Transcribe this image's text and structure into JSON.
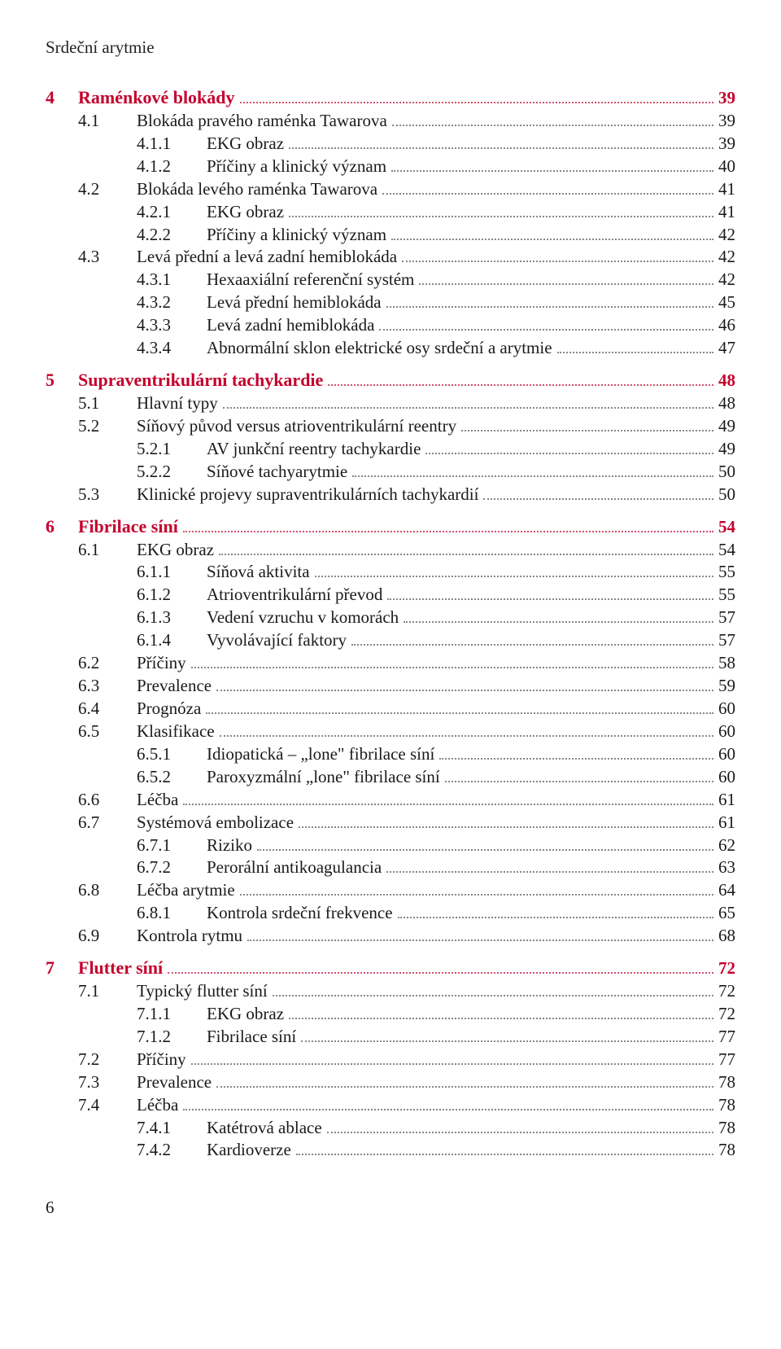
{
  "colors": {
    "accent": "#c4002d",
    "text": "#1a1a1a",
    "dot": "#888888",
    "dot_accent": "#d0526e",
    "background": "#ffffff"
  },
  "typography": {
    "body_family": "Minion Pro / Times New Roman serif",
    "body_size_pt": 16,
    "line_height": 1.33
  },
  "running_head": "Srdeční arytmie",
  "page_number": "6",
  "chapters": [
    {
      "num": "4",
      "title": "Raménkové blokády",
      "page": "39",
      "sections": [
        {
          "num": "4.1",
          "title": "Blokáda pravého raménka Tawarova",
          "page": "39",
          "subs": [
            {
              "num": "4.1.1",
              "title": "EKG obraz",
              "page": "39"
            },
            {
              "num": "4.1.2",
              "title": "Příčiny a klinický význam",
              "page": "40"
            }
          ]
        },
        {
          "num": "4.2",
          "title": "Blokáda levého raménka Tawarova",
          "page": "41",
          "subs": [
            {
              "num": "4.2.1",
              "title": "EKG obraz",
              "page": "41"
            },
            {
              "num": "4.2.2",
              "title": "Příčiny a klinický význam",
              "page": "42"
            }
          ]
        },
        {
          "num": "4.3",
          "title": "Levá přední a levá zadní hemiblokáda",
          "page": "42",
          "subs": [
            {
              "num": "4.3.1",
              "title": "Hexaaxiální referenční systém",
              "page": "42"
            },
            {
              "num": "4.3.2",
              "title": "Levá přední hemiblokáda",
              "page": "45"
            },
            {
              "num": "4.3.3",
              "title": "Levá zadní hemiblokáda",
              "page": "46"
            },
            {
              "num": "4.3.4",
              "title": "Abnormální sklon elektrické osy srdeční a arytmie",
              "page": "47"
            }
          ]
        }
      ]
    },
    {
      "num": "5",
      "title": "Supraventrikulární tachykardie",
      "page": "48",
      "sections": [
        {
          "num": "5.1",
          "title": "Hlavní typy",
          "page": "48",
          "subs": []
        },
        {
          "num": "5.2",
          "title": "Síňový původ versus atrioventrikulární reentry",
          "page": "49",
          "subs": [
            {
              "num": "5.2.1",
              "title": "AV junkční reentry tachykardie",
              "page": "49"
            },
            {
              "num": "5.2.2",
              "title": "Síňové tachyarytmie",
              "page": "50"
            }
          ]
        },
        {
          "num": "5.3",
          "title": "Klinické projevy supraventrikulárních tachykardií",
          "page": "50",
          "subs": []
        }
      ]
    },
    {
      "num": "6",
      "title": "Fibrilace síní",
      "page": "54",
      "sections": [
        {
          "num": "6.1",
          "title": "EKG obraz",
          "page": "54",
          "subs": [
            {
              "num": "6.1.1",
              "title": "Síňová aktivita",
              "page": "55"
            },
            {
              "num": "6.1.2",
              "title": "Atrioventrikulární převod",
              "page": "55"
            },
            {
              "num": "6.1.3",
              "title": "Vedení vzruchu v komorách",
              "page": "57"
            },
            {
              "num": "6.1.4",
              "title": "Vyvolávající faktory",
              "page": "57"
            }
          ]
        },
        {
          "num": "6.2",
          "title": "Příčiny",
          "page": "58",
          "subs": []
        },
        {
          "num": "6.3",
          "title": "Prevalence",
          "page": "59",
          "subs": []
        },
        {
          "num": "6.4",
          "title": "Prognóza",
          "page": "60",
          "subs": []
        },
        {
          "num": "6.5",
          "title": "Klasifikace",
          "page": "60",
          "subs": [
            {
              "num": "6.5.1",
              "title": "Idiopatická – „lone\" fibrilace síní",
              "page": "60"
            },
            {
              "num": "6.5.2",
              "title": "Paroxyzmální „lone\" fibrilace síní",
              "page": "60"
            }
          ]
        },
        {
          "num": "6.6",
          "title": "Léčba",
          "page": "61",
          "subs": []
        },
        {
          "num": "6.7",
          "title": "Systémová embolizace",
          "page": "61",
          "subs": [
            {
              "num": "6.7.1",
              "title": "Riziko",
              "page": "62"
            },
            {
              "num": "6.7.2",
              "title": "Perorální antikoagulancia",
              "page": "63"
            }
          ]
        },
        {
          "num": "6.8",
          "title": "Léčba arytmie",
          "page": "64",
          "subs": [
            {
              "num": "6.8.1",
              "title": "Kontrola srdeční frekvence",
              "page": "65"
            }
          ]
        },
        {
          "num": "6.9",
          "title": "Kontrola rytmu",
          "page": "68",
          "subs": []
        }
      ]
    },
    {
      "num": "7",
      "title": "Flutter síní",
      "page": "72",
      "sections": [
        {
          "num": "7.1",
          "title": "Typický flutter síní",
          "page": "72",
          "subs": [
            {
              "num": "7.1.1",
              "title": "EKG obraz",
              "page": "72"
            },
            {
              "num": "7.1.2",
              "title": "Fibrilace síní",
              "page": "77"
            }
          ]
        },
        {
          "num": "7.2",
          "title": "Příčiny",
          "page": "77",
          "subs": []
        },
        {
          "num": "7.3",
          "title": "Prevalence",
          "page": "78",
          "subs": []
        },
        {
          "num": "7.4",
          "title": "Léčba",
          "page": "78",
          "subs": [
            {
              "num": "7.4.1",
              "title": "Katétrová ablace",
              "page": "78"
            },
            {
              "num": "7.4.2",
              "title": "Kardioverze",
              "page": "78"
            }
          ]
        }
      ]
    }
  ]
}
